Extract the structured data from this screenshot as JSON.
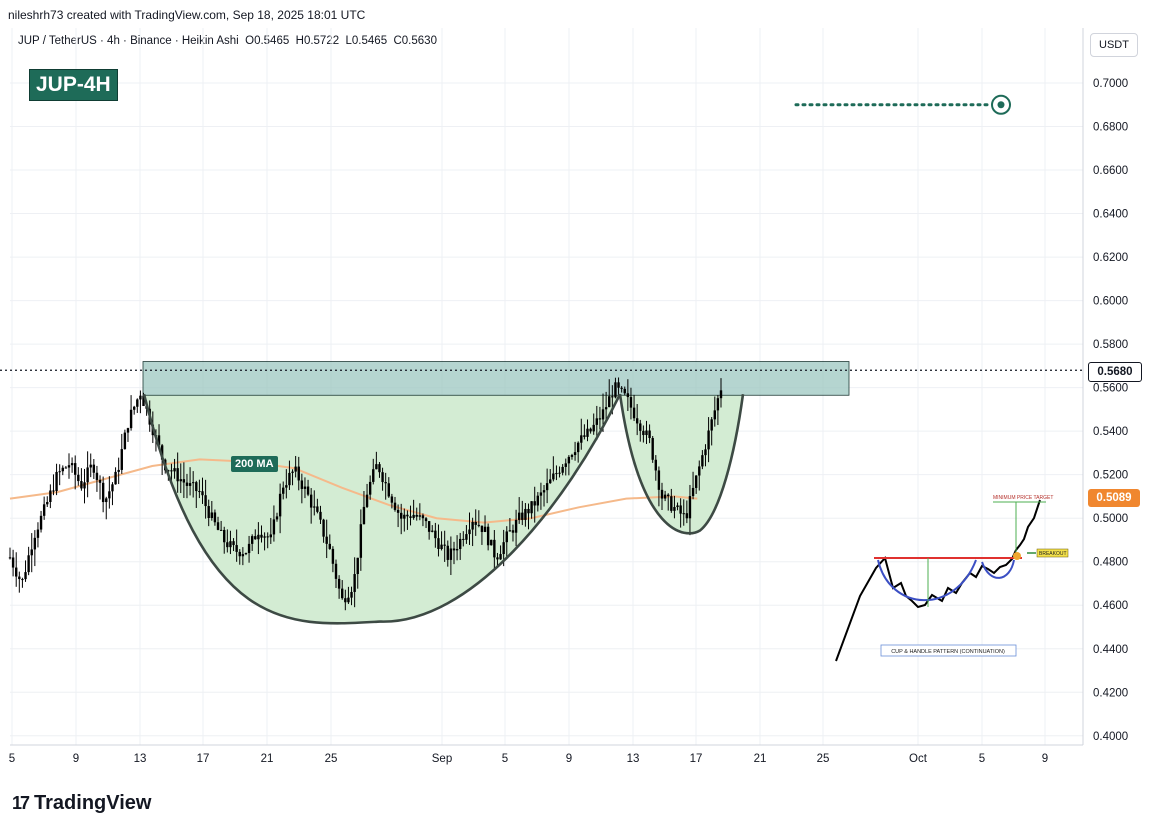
{
  "header": {
    "attribution": "nileshrh73 created with TradingView.com, Sep 18, 2025 18:01 UTC",
    "symbol": "JUP / TetherUS · 4h · Binance · Heikin Ashi",
    "open": "O0.5465",
    "high": "H0.5722",
    "low": "L0.5465",
    "close": "C0.5630"
  },
  "badge": "JUP-4H",
  "currency_button": "USDT",
  "ma_label": "200 MA",
  "last_price_tag": "0.5680",
  "ma_price_tag": "0.5089",
  "footer_logo": "TradingView",
  "inset": {
    "target_label": "MINIMUM PRICE TARGET",
    "breakout_label": "BREAKOUT",
    "pattern_label": "CUP & HANDLE PATTERN (CONTINUATION)"
  },
  "colors": {
    "bull": "#000000",
    "ma_line": "#f5b98a",
    "cup_fill": "#d3ecd3",
    "resistance_fill": "#9cc7c0",
    "accent": "#1e6b58",
    "ma_tag": "#f0872f"
  },
  "chart_data": {
    "type": "candlestick",
    "series_name": "JUP / TetherUS 4h Heikin Ashi",
    "y_axis": {
      "ticks": [
        "0.7000",
        "0.6800",
        "0.6600",
        "0.6400",
        "0.6200",
        "0.6000",
        "0.5800",
        "0.5600",
        "0.5400",
        "0.5200",
        "0.5000",
        "0.4800",
        "0.4600",
        "0.4400",
        "0.4200",
        "0.4000"
      ],
      "range": [
        0.393,
        0.722
      ]
    },
    "x_axis": {
      "ticks": [
        "5",
        "9",
        "13",
        "17",
        "21",
        "25",
        "Sep",
        "5",
        "9",
        "13",
        "17",
        "21",
        "25",
        "Oct",
        "5",
        "9"
      ]
    },
    "price_path": [
      [
        0,
        0.482
      ],
      [
        1,
        0.47
      ],
      [
        2,
        0.492
      ],
      [
        3,
        0.505
      ],
      [
        4,
        0.52
      ],
      [
        5,
        0.525
      ],
      [
        6,
        0.515
      ],
      [
        7,
        0.525
      ],
      [
        8,
        0.508
      ],
      [
        9,
        0.52
      ],
      [
        10,
        0.545
      ],
      [
        11,
        0.558
      ],
      [
        12,
        0.542
      ],
      [
        13,
        0.525
      ],
      [
        14,
        0.52
      ],
      [
        15,
        0.515
      ],
      [
        16,
        0.512
      ],
      [
        17,
        0.5
      ],
      [
        18,
        0.49
      ],
      [
        19,
        0.485
      ],
      [
        20,
        0.485
      ],
      [
        21,
        0.495
      ],
      [
        22,
        0.49
      ],
      [
        23,
        0.515
      ],
      [
        24,
        0.522
      ],
      [
        25,
        0.512
      ],
      [
        26,
        0.5
      ],
      [
        27,
        0.485
      ],
      [
        28,
        0.462
      ],
      [
        29,
        0.47
      ],
      [
        30,
        0.51
      ],
      [
        31,
        0.525
      ],
      [
        32,
        0.512
      ],
      [
        33,
        0.5
      ],
      [
        34,
        0.502
      ],
      [
        35,
        0.498
      ],
      [
        36,
        0.49
      ],
      [
        37,
        0.482
      ],
      [
        38,
        0.49
      ],
      [
        39,
        0.5
      ],
      [
        40,
        0.495
      ],
      [
        41,
        0.482
      ],
      [
        42,
        0.492
      ],
      [
        43,
        0.5
      ],
      [
        44,
        0.505
      ],
      [
        45,
        0.512
      ],
      [
        46,
        0.52
      ],
      [
        47,
        0.528
      ],
      [
        48,
        0.535
      ],
      [
        49,
        0.54
      ],
      [
        50,
        0.548
      ],
      [
        51,
        0.56
      ],
      [
        52,
        0.555
      ],
      [
        53,
        0.545
      ],
      [
        54,
        0.535
      ],
      [
        55,
        0.51
      ],
      [
        56,
        0.505
      ],
      [
        57,
        0.5
      ],
      [
        58,
        0.52
      ],
      [
        59,
        0.54
      ],
      [
        60,
        0.56
      ]
    ],
    "ma200": [
      [
        0,
        0.509
      ],
      [
        4,
        0.512
      ],
      [
        8,
        0.518
      ],
      [
        12,
        0.524
      ],
      [
        16,
        0.527
      ],
      [
        20,
        0.526
      ],
      [
        24,
        0.523
      ],
      [
        28,
        0.514
      ],
      [
        32,
        0.506
      ],
      [
        36,
        0.5
      ],
      [
        40,
        0.498
      ],
      [
        44,
        0.5
      ],
      [
        48,
        0.505
      ],
      [
        52,
        0.509
      ],
      [
        56,
        0.51
      ],
      [
        58,
        0.509
      ]
    ],
    "resistance_zone": [
      0.5565,
      0.572
    ],
    "last_price": 0.568,
    "target_price": 0.69,
    "cup_bottom": 0.4525,
    "handle_bottom": 0.4925,
    "ma_value": 0.5089,
    "grid": true
  }
}
